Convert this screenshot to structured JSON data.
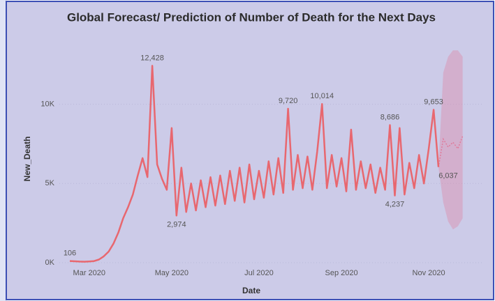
{
  "chart_data": {
    "type": "line",
    "title": "Global Forecast/ Prediction of Number of Death for the Next Days",
    "x_label": "Date",
    "y_label": "New_Death",
    "categories": [
      null,
      null,
      null,
      null,
      "Mar 2020",
      null,
      null,
      null,
      null,
      null,
      null,
      null,
      null,
      null,
      null,
      null,
      null,
      null,
      null,
      null,
      null,
      "May 2020",
      null,
      null,
      null,
      null,
      null,
      null,
      null,
      null,
      null,
      null,
      null,
      null,
      null,
      null,
      null,
      null,
      null,
      "Jul 2020",
      null,
      null,
      null,
      null,
      null,
      null,
      null,
      null,
      null,
      null,
      null,
      null,
      null,
      null,
      null,
      null,
      "Sep 2020",
      null,
      null,
      null,
      null,
      null,
      null,
      null,
      null,
      null,
      null,
      null,
      null,
      null,
      null,
      null,
      null,
      null,
      "Nov 2020",
      null,
      null,
      null,
      null,
      null,
      null,
      null
    ],
    "series": [
      {
        "color": "#e8676f",
        "values": [
          106,
          90,
          70,
          60,
          80,
          100,
          200,
          400,
          700,
          1200,
          1900,
          2800,
          3500,
          4300,
          5500,
          6600,
          5400,
          12428,
          6200,
          5300,
          4600,
          8500,
          2974,
          6000,
          3200,
          5000,
          3300,
          5200,
          3500,
          5400,
          3600,
          5500,
          3700,
          5800,
          3900,
          6000,
          3800,
          6200,
          4000,
          5800,
          4100,
          6400,
          4300,
          6600,
          4400,
          9720,
          4600,
          6800,
          4700,
          6700,
          4600,
          7000,
          10014,
          4700,
          6800,
          4800,
          6600,
          4500,
          8400,
          4600,
          6400,
          4700,
          6200,
          4400,
          6000,
          4600,
          8686,
          4237,
          8500,
          4300,
          6300,
          4700,
          6800,
          5000,
          7200,
          9653,
          6037,
          null,
          null,
          null,
          null,
          null
        ],
        "value_labels": [
          "106",
          null,
          null,
          null,
          null,
          null,
          null,
          null,
          null,
          null,
          null,
          null,
          null,
          null,
          null,
          null,
          null,
          "12,428",
          null,
          null,
          null,
          null,
          "2,974",
          null,
          null,
          null,
          null,
          null,
          null,
          null,
          null,
          null,
          null,
          null,
          null,
          null,
          null,
          null,
          null,
          null,
          null,
          null,
          null,
          null,
          null,
          "9,720",
          null,
          null,
          null,
          null,
          null,
          null,
          "10,014",
          null,
          null,
          null,
          null,
          null,
          null,
          null,
          null,
          null,
          null,
          null,
          null,
          null,
          "8,686",
          "4,237",
          null,
          null,
          null,
          null,
          null,
          null,
          null,
          "9,653",
          "6,037",
          null,
          null,
          null,
          null,
          null
        ]
      }
    ],
    "forecast": {
      "color": "#e07a9a",
      "values": [
        null,
        null,
        null,
        null,
        null,
        null,
        null,
        null,
        null,
        null,
        null,
        null,
        null,
        null,
        null,
        null,
        null,
        null,
        null,
        null,
        null,
        null,
        null,
        null,
        null,
        null,
        null,
        null,
        null,
        null,
        null,
        null,
        null,
        null,
        null,
        null,
        null,
        null,
        null,
        null,
        null,
        null,
        null,
        null,
        null,
        null,
        null,
        null,
        null,
        null,
        null,
        null,
        null,
        null,
        null,
        null,
        null,
        null,
        null,
        null,
        null,
        null,
        null,
        null,
        null,
        null,
        null,
        null,
        null,
        null,
        null,
        null,
        null,
        null,
        null,
        null,
        6037,
        7800,
        7300,
        7600,
        7200,
        8000
      ],
      "upper": [
        null,
        null,
        null,
        null,
        null,
        null,
        null,
        null,
        null,
        null,
        null,
        null,
        null,
        null,
        null,
        null,
        null,
        null,
        null,
        null,
        null,
        null,
        null,
        null,
        null,
        null,
        null,
        null,
        null,
        null,
        null,
        null,
        null,
        null,
        null,
        null,
        null,
        null,
        null,
        null,
        null,
        null,
        null,
        null,
        null,
        null,
        null,
        null,
        null,
        null,
        null,
        null,
        null,
        null,
        null,
        null,
        null,
        null,
        null,
        null,
        null,
        null,
        null,
        null,
        null,
        null,
        null,
        null,
        null,
        null,
        null,
        null,
        null,
        null,
        null,
        null,
        6037,
        12000,
        13000,
        13400,
        13400,
        13000
      ],
      "lower": [
        null,
        null,
        null,
        null,
        null,
        null,
        null,
        null,
        null,
        null,
        null,
        null,
        null,
        null,
        null,
        null,
        null,
        null,
        null,
        null,
        null,
        null,
        null,
        null,
        null,
        null,
        null,
        null,
        null,
        null,
        null,
        null,
        null,
        null,
        null,
        null,
        null,
        null,
        null,
        null,
        null,
        null,
        null,
        null,
        null,
        null,
        null,
        null,
        null,
        null,
        null,
        null,
        null,
        null,
        null,
        null,
        null,
        null,
        null,
        null,
        null,
        null,
        null,
        null,
        null,
        null,
        null,
        null,
        null,
        null,
        null,
        null,
        null,
        null,
        null,
        null,
        6037,
        3800,
        2600,
        2100,
        2300,
        2800
      ]
    },
    "ylim": [
      0,
      13500
    ],
    "yticks": [
      {
        "value": 0,
        "label": "0K"
      },
      {
        "value": 5000,
        "label": "5K"
      },
      {
        "value": 10000,
        "label": "10K"
      }
    ],
    "grid": true
  }
}
